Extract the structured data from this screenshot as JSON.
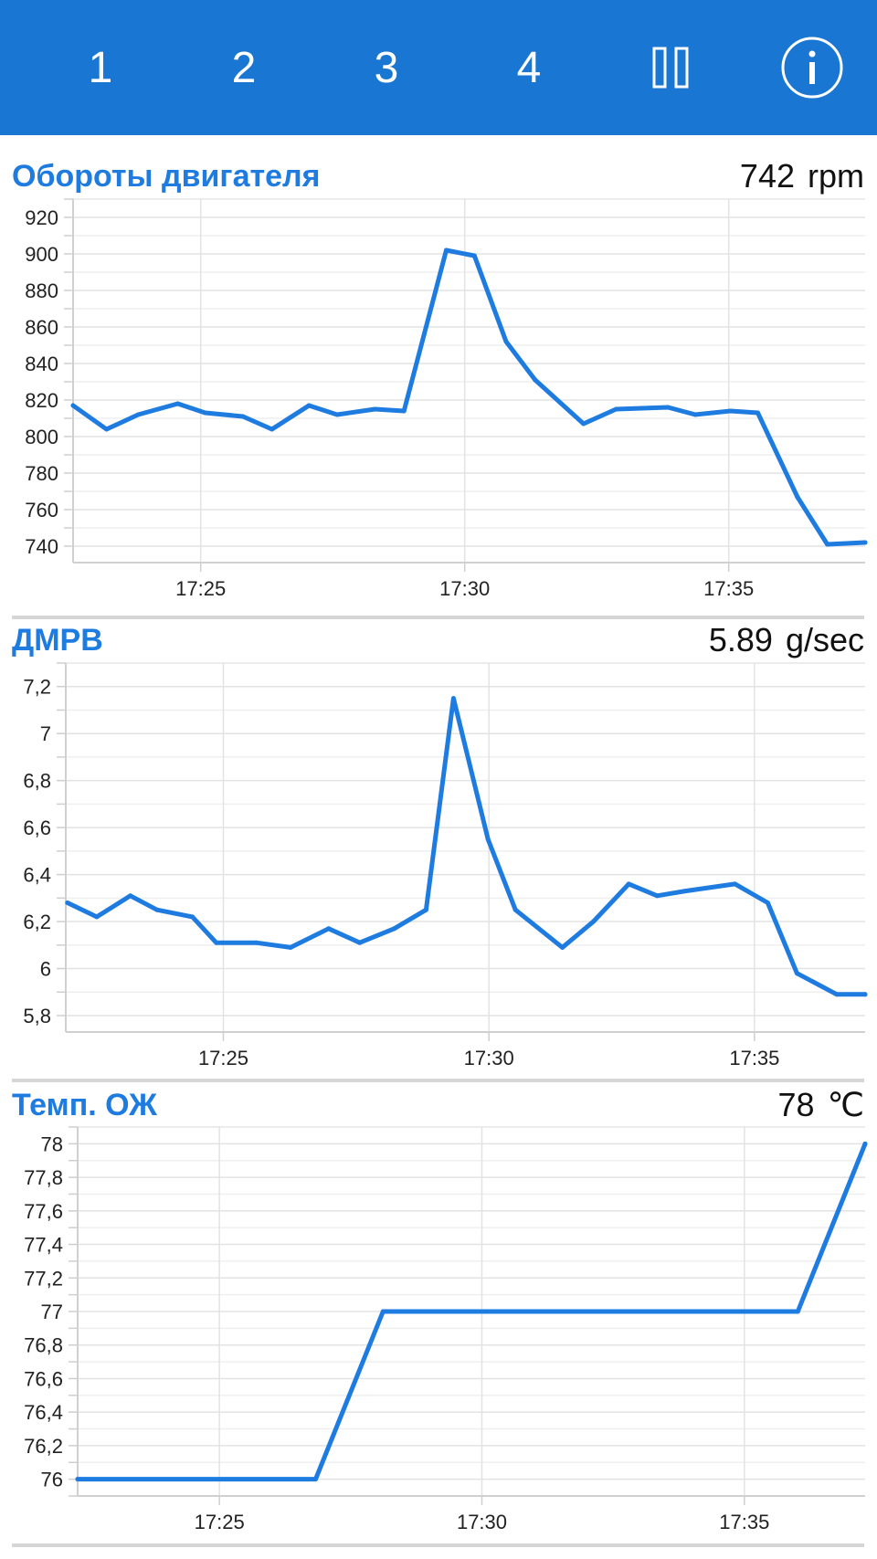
{
  "toolbar": {
    "tabs": [
      {
        "label": "1"
      },
      {
        "label": "2"
      },
      {
        "label": "3"
      },
      {
        "label": "4"
      }
    ],
    "pause_icon": "pause-icon",
    "info_icon": "info-icon",
    "background_color": "#1976d2"
  },
  "line_color": "#1e7be0",
  "panels": [
    {
      "title": "Обороты двигателя",
      "value": "742",
      "unit": "rpm"
    },
    {
      "title": "ДМРВ",
      "value": "5.89",
      "unit": "g/sec"
    },
    {
      "title": "Темп. ОЖ",
      "value": "78",
      "unit": "℃"
    }
  ],
  "chart_data": [
    {
      "type": "line",
      "title": "Обороты двигателя",
      "x_unit": "time",
      "x_ticks": [
        "17:25",
        "17:30",
        "17:35"
      ],
      "y_ticks": [
        "920",
        "900",
        "880",
        "860",
        "840",
        "820",
        "800",
        "780",
        "760",
        "740"
      ],
      "ylim": [
        731,
        930
      ],
      "xlim": [
        "17:22:35",
        "17:37:35"
      ],
      "grid": true,
      "series": [
        {
          "x": [
            "17:22:35",
            "17:23:13",
            "17:23:49",
            "17:24:34",
            "17:25:05",
            "17:25:48",
            "17:26:21",
            "17:27:03",
            "17:27:35",
            "17:28:18",
            "17:28:51",
            "17:29:39",
            "17:30:11",
            "17:30:47",
            "17:31:20",
            "17:32:15",
            "17:32:52",
            "17:33:51",
            "17:34:22",
            "17:35:02",
            "17:35:33",
            "17:36:18",
            "17:36:52",
            "17:37:35"
          ],
          "y": [
            817,
            804,
            812,
            818,
            813,
            811,
            804,
            817,
            812,
            815,
            814,
            902,
            899,
            852,
            831,
            807,
            815,
            816,
            812,
            814,
            813,
            767,
            741,
            742
          ]
        }
      ]
    },
    {
      "type": "line",
      "title": "ДМРВ",
      "x_unit": "time",
      "x_ticks": [
        "17:25",
        "17:30",
        "17:35"
      ],
      "y_ticks": [
        "7,2",
        "7",
        "6,8",
        "6,6",
        "6,4",
        "6,2",
        "6",
        "5,8"
      ],
      "ylim": [
        5.73,
        7.3
      ],
      "xlim": [
        "17:22:02",
        "17:37:05"
      ],
      "grid": true,
      "series": [
        {
          "x": [
            "17:22:04",
            "17:22:37",
            "17:23:15",
            "17:23:45",
            "17:24:25",
            "17:24:52",
            "17:25:37",
            "17:26:16",
            "17:26:59",
            "17:27:34",
            "17:28:13",
            "17:28:49",
            "17:29:20",
            "17:29:59",
            "17:30:30",
            "17:31:23",
            "17:31:58",
            "17:32:38",
            "17:33:10",
            "17:33:42",
            "17:34:38",
            "17:35:15",
            "17:35:48",
            "17:36:33",
            "17:37:05"
          ],
          "y": [
            6.28,
            6.22,
            6.31,
            6.25,
            6.22,
            6.11,
            6.11,
            6.09,
            6.17,
            6.11,
            6.17,
            6.25,
            7.15,
            6.55,
            6.25,
            6.09,
            6.2,
            6.36,
            6.31,
            6.33,
            6.36,
            6.28,
            5.98,
            5.89,
            5.89
          ]
        }
      ]
    },
    {
      "type": "line",
      "title": "Темп. ОЖ",
      "x_unit": "time",
      "x_ticks": [
        "17:25",
        "17:30",
        "17:35"
      ],
      "y_ticks": [
        "78",
        "77,8",
        "77,6",
        "77,4",
        "77,2",
        "77",
        "76,8",
        "76,6",
        "76,4",
        "76,2",
        "76"
      ],
      "ylim": [
        75.9,
        78.1
      ],
      "xlim": [
        "17:22:18",
        "17:37:18"
      ],
      "grid": true,
      "series": [
        {
          "x": [
            "17:22:18",
            "17:26:50",
            "17:28:07",
            "17:36:01",
            "17:37:18"
          ],
          "y": [
            76,
            76,
            77,
            77,
            78
          ]
        }
      ]
    }
  ]
}
